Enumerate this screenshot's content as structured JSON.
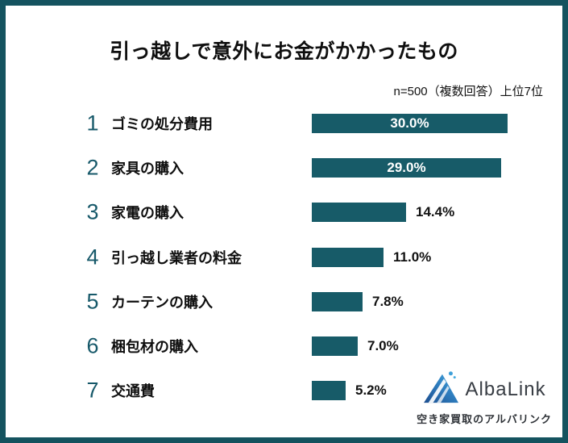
{
  "header": {
    "title": "引っ越しで意外にお金がかかったもの",
    "subtitle": "n=500（複数回答）上位7位"
  },
  "chart_data": {
    "type": "bar",
    "orientation": "horizontal",
    "title": "引っ越しで意外にお金がかかったもの",
    "sample_note": "n=500（複数回答）上位7位",
    "ranks": [
      1,
      2,
      3,
      4,
      5,
      6,
      7
    ],
    "categories": [
      "ゴミの処分費用",
      "家具の購入",
      "家電の購入",
      "引っ越し業者の料金",
      "カーテンの購入",
      "梱包材の購入",
      "交通費"
    ],
    "values": [
      30.0,
      29.0,
      14.4,
      11.0,
      7.8,
      7.0,
      5.2
    ],
    "value_labels": [
      "30.0%",
      "29.0%",
      "14.4%",
      "11.0%",
      "7.8%",
      "7.0%",
      "5.2%"
    ],
    "unit": "%",
    "xlim": [
      0,
      30
    ],
    "grid": false,
    "legend": false,
    "value_label_inside_threshold": 20,
    "bar_color": "#175b68"
  },
  "colors": {
    "border": "#14535f",
    "bar": "#175b68",
    "rank_number": "#17596a",
    "value_inside": "#ffffff",
    "value_outside": "#111111"
  },
  "branding": {
    "logo_text": "AlbaLink",
    "tagline": "空き家買取のアルバリンク",
    "icon": "mountain-spark-icon",
    "icon_colors": {
      "dark": "#1d4e8f",
      "light": "#45aadf",
      "streak": "#ffffff"
    }
  }
}
